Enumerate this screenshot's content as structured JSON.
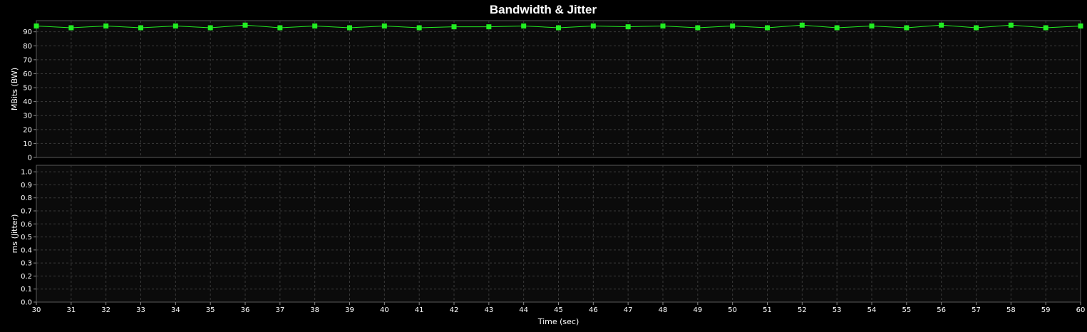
{
  "chart_data": [
    {
      "type": "line",
      "title": "Bandwidth & Jitter",
      "ylabel": "MBits (BW)",
      "ylim": [
        0,
        98
      ],
      "yticks": [
        0,
        10,
        20,
        30,
        40,
        50,
        60,
        70,
        80,
        90
      ],
      "xlim": [
        30,
        60
      ],
      "grid": true,
      "series": [
        {
          "color": "#22ee22",
          "marker": "square",
          "x": [
            30,
            31,
            32,
            33,
            34,
            35,
            36,
            37,
            38,
            39,
            40,
            41,
            42,
            43,
            44,
            45,
            46,
            47,
            48,
            49,
            50,
            51,
            52,
            53,
            54,
            55,
            56,
            57,
            58,
            59,
            60
          ],
          "y": [
            94.2,
            92.9,
            94.2,
            92.9,
            94.2,
            92.9,
            94.8,
            92.9,
            94.2,
            92.9,
            94.2,
            92.9,
            93.6,
            93.6,
            94.2,
            92.9,
            94.2,
            93.6,
            94.2,
            92.9,
            94.2,
            92.9,
            94.8,
            92.9,
            94.2,
            92.9,
            94.8,
            92.9,
            94.8,
            92.9,
            94.2
          ]
        }
      ]
    },
    {
      "type": "line",
      "ylabel": "ms (Jitter)",
      "xlabel": "Time (sec)",
      "ylim": [
        0,
        1.05
      ],
      "yticks": [
        "0.0",
        "0.1",
        "0.2",
        "0.3",
        "0.4",
        "0.5",
        "0.6",
        "0.7",
        "0.8",
        "0.9",
        "1.0"
      ],
      "xlim": [
        30,
        60
      ],
      "xticks": [
        30,
        31,
        32,
        33,
        34,
        35,
        36,
        37,
        38,
        39,
        40,
        41,
        42,
        43,
        44,
        45,
        46,
        47,
        48,
        49,
        50,
        51,
        52,
        53,
        54,
        55,
        56,
        57,
        58,
        59,
        60
      ],
      "grid": true,
      "series": []
    }
  ]
}
